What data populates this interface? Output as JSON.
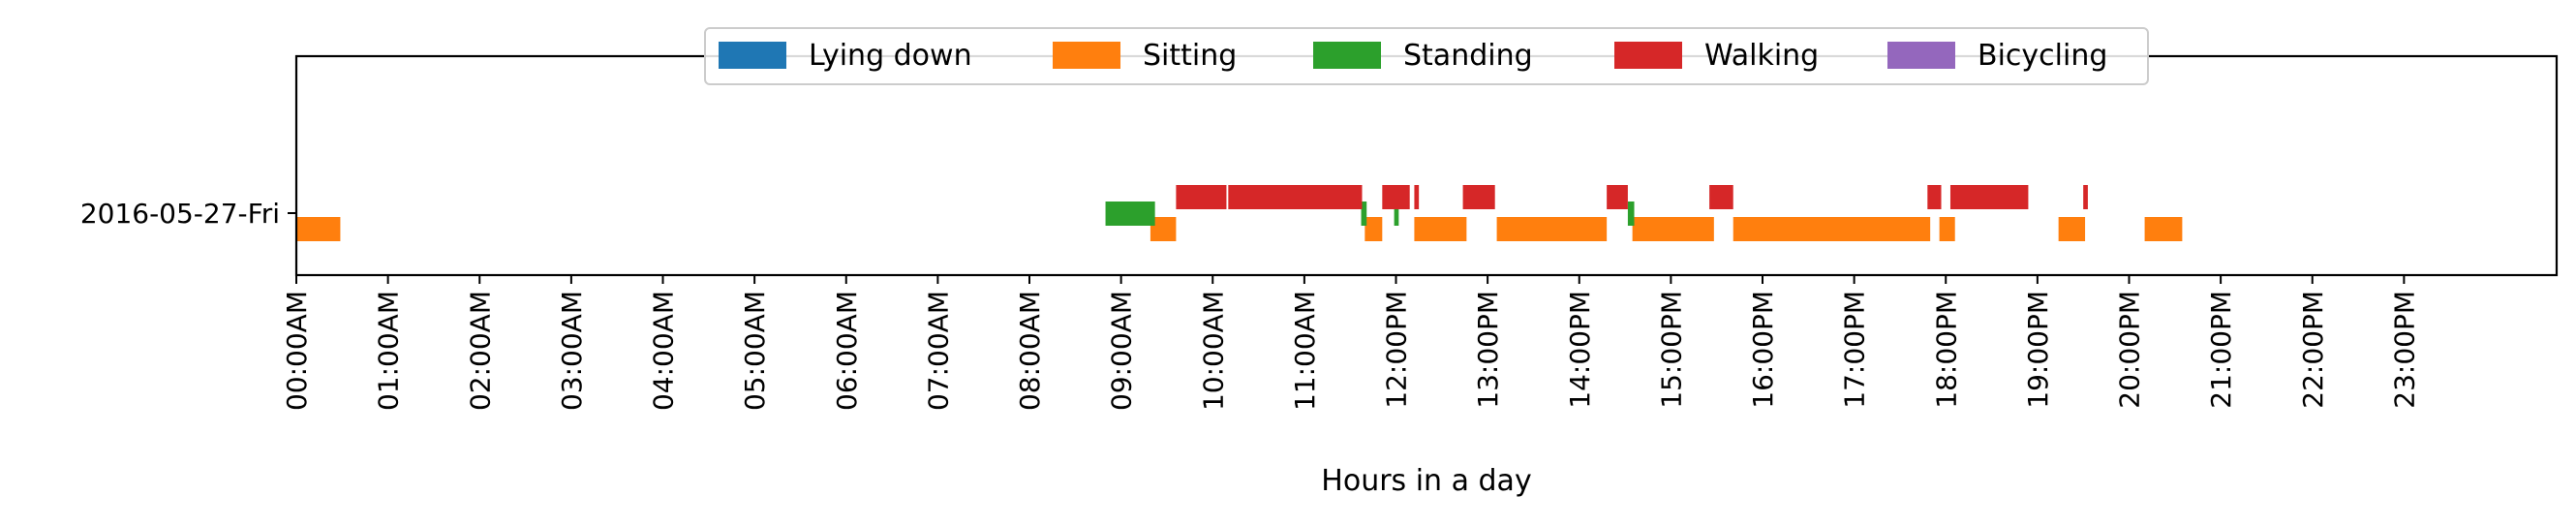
{
  "chart_data": {
    "type": "timeline",
    "title": "",
    "xlabel": "Hours in a day",
    "ylabel": "",
    "xlim": [
      0,
      24
    ],
    "grid": false,
    "legend_placement": "upper center",
    "row_label": "2016-05-27-Fri",
    "x_tick_labels": [
      "00:00AM",
      "01:00AM",
      "02:00AM",
      "03:00AM",
      "04:00AM",
      "05:00AM",
      "06:00AM",
      "07:00AM",
      "08:00AM",
      "09:00AM",
      "10:00AM",
      "11:00AM",
      "12:00PM",
      "13:00PM",
      "14:00PM",
      "15:00PM",
      "16:00PM",
      "17:00PM",
      "18:00PM",
      "19:00PM",
      "20:00PM",
      "21:00PM",
      "22:00PM",
      "23:00PM"
    ],
    "series": [
      {
        "name": "Lying down",
        "color": "#1f77b4",
        "level": 0,
        "intervals": []
      },
      {
        "name": "Sitting",
        "color": "#ff7f0e",
        "level": 0,
        "intervals": [
          [
            0.0,
            0.48
          ],
          [
            9.32,
            9.6
          ],
          [
            11.66,
            11.85
          ],
          [
            12.2,
            12.77
          ],
          [
            13.1,
            14.3
          ],
          [
            14.58,
            15.47
          ],
          [
            15.68,
            17.83
          ],
          [
            17.93,
            18.1
          ],
          [
            19.23,
            19.52
          ],
          [
            20.17,
            20.58
          ]
        ]
      },
      {
        "name": "Standing",
        "color": "#2ca02c",
        "level": 1,
        "intervals": [
          [
            8.83,
            9.37
          ],
          [
            11.62,
            11.68
          ],
          [
            11.98,
            12.03
          ],
          [
            14.53,
            14.6
          ]
        ]
      },
      {
        "name": "Walking",
        "color": "#d62728",
        "level": 2,
        "intervals": [
          [
            9.6,
            10.15
          ],
          [
            10.17,
            11.63
          ],
          [
            11.85,
            12.15
          ],
          [
            12.2,
            12.25
          ],
          [
            12.73,
            13.08
          ],
          [
            14.3,
            14.53
          ],
          [
            15.42,
            15.68
          ],
          [
            17.8,
            17.95
          ],
          [
            18.05,
            18.9
          ],
          [
            19.5,
            19.55
          ]
        ]
      },
      {
        "name": "Bicycling",
        "color": "#9467bd",
        "level": 0,
        "intervals": []
      }
    ]
  }
}
